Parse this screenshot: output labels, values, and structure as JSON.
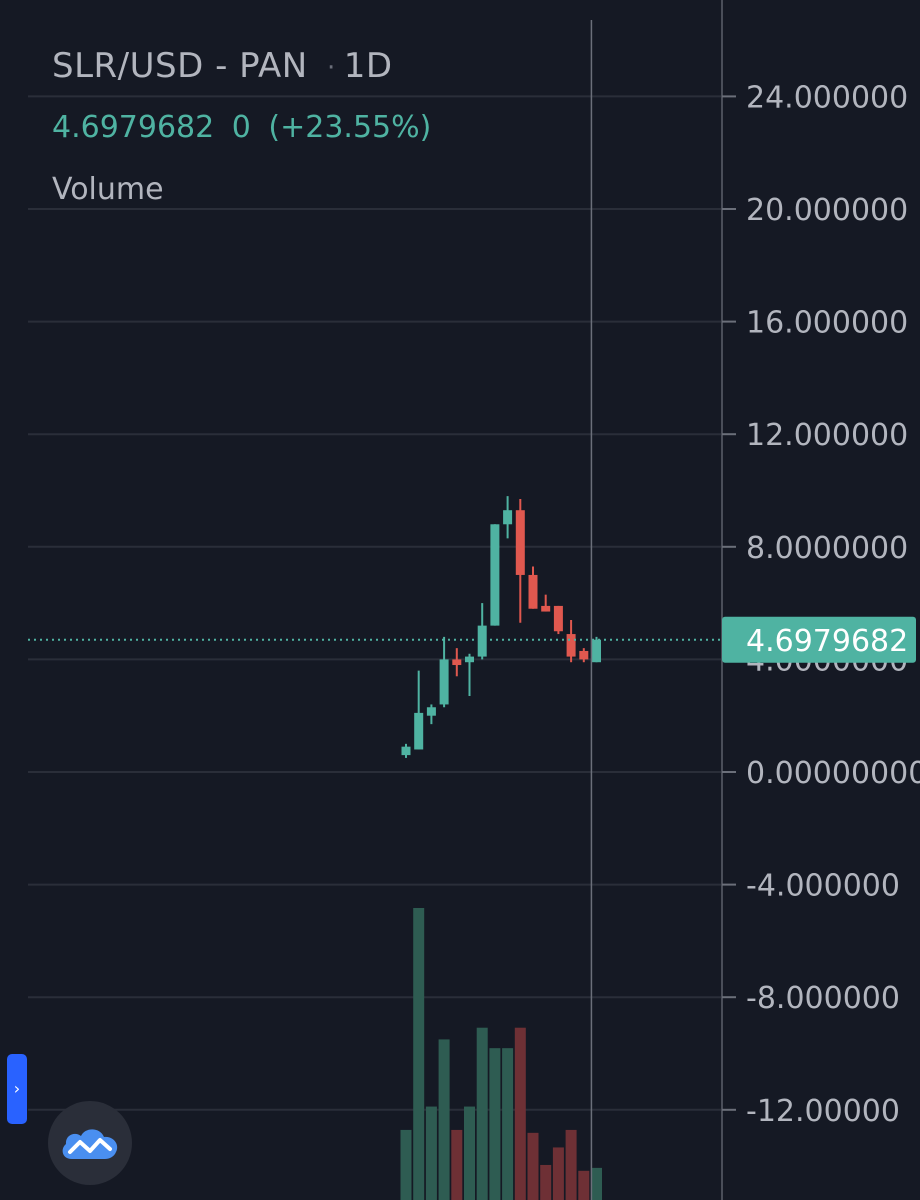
{
  "legend": {
    "symbol": "SLR/USD",
    "separator": "-",
    "exchange": "PAN",
    "interval": "1D",
    "last_price": "4.6979682",
    "change": "0",
    "change_pct": "(+23.55%)",
    "volume_label": "Volume"
  },
  "colors": {
    "background": "#151924",
    "grid": "#2a2e39",
    "up": "#4fb3a2",
    "down": "#e0584f",
    "up_volume": "#2e5c52",
    "down_volume": "#6e3035",
    "price_label_bg": "#4fb3a2",
    "axis_text": "#b2b5be"
  },
  "icons": {
    "side_tab": "chevron-right-icon",
    "logo": "tradingview-cloud-icon"
  },
  "chart_data": {
    "type": "candlestick",
    "title": "SLR/USD - PAN · 1D",
    "xlabel": "",
    "ylabel": "",
    "ylim": [
      -14.5,
      26.5
    ],
    "y_ticks": [
      {
        "value": 24,
        "label": "24.000000"
      },
      {
        "value": 20,
        "label": "20.000000"
      },
      {
        "value": 16,
        "label": "16.000000"
      },
      {
        "value": 12,
        "label": "12.000000"
      },
      {
        "value": 8,
        "label": "8.0000000"
      },
      {
        "value": 4,
        "label": "4.0000000"
      },
      {
        "value": 0,
        "label": "0.00000000"
      },
      {
        "value": -4,
        "label": "-4.000000"
      },
      {
        "value": -8,
        "label": "-8.000000"
      },
      {
        "value": -12,
        "label": "-12.00000"
      }
    ],
    "last_price": 4.6979682,
    "last_price_label": "4.6979682",
    "grid": true,
    "candles": [
      {
        "o": 0.6,
        "h": 1.0,
        "l": 0.5,
        "c": 0.9,
        "v": 24
      },
      {
        "o": 0.8,
        "h": 3.6,
        "l": 0.8,
        "c": 2.1,
        "v": 100
      },
      {
        "o": 2.0,
        "h": 2.4,
        "l": 1.7,
        "c": 2.3,
        "v": 32
      },
      {
        "o": 2.4,
        "h": 4.8,
        "l": 2.3,
        "c": 4.0,
        "v": 55
      },
      {
        "o": 4.0,
        "h": 4.4,
        "l": 3.4,
        "c": 3.8,
        "v": 24
      },
      {
        "o": 3.9,
        "h": 4.2,
        "l": 2.7,
        "c": 4.1,
        "v": 32
      },
      {
        "o": 4.1,
        "h": 6.0,
        "l": 4.0,
        "c": 5.2,
        "v": 59
      },
      {
        "o": 5.2,
        "h": 8.8,
        "l": 5.2,
        "c": 8.8,
        "v": 52
      },
      {
        "o": 8.8,
        "h": 9.8,
        "l": 8.3,
        "c": 9.3,
        "v": 52
      },
      {
        "o": 9.3,
        "h": 9.7,
        "l": 5.3,
        "c": 7.0,
        "v": 59
      },
      {
        "o": 7.0,
        "h": 7.3,
        "l": 5.8,
        "c": 5.8,
        "v": 23
      },
      {
        "o": 5.9,
        "h": 6.3,
        "l": 5.7,
        "c": 5.7,
        "v": 12
      },
      {
        "o": 5.9,
        "h": 5.9,
        "l": 4.9,
        "c": 5.0,
        "v": 18
      },
      {
        "o": 4.9,
        "h": 5.4,
        "l": 3.9,
        "c": 4.1,
        "v": 24
      },
      {
        "o": 4.3,
        "h": 4.4,
        "l": 3.9,
        "c": 4.0,
        "v": 10
      },
      {
        "o": 3.9,
        "h": 4.8,
        "l": 3.9,
        "c": 4.7,
        "v": 11
      }
    ]
  }
}
